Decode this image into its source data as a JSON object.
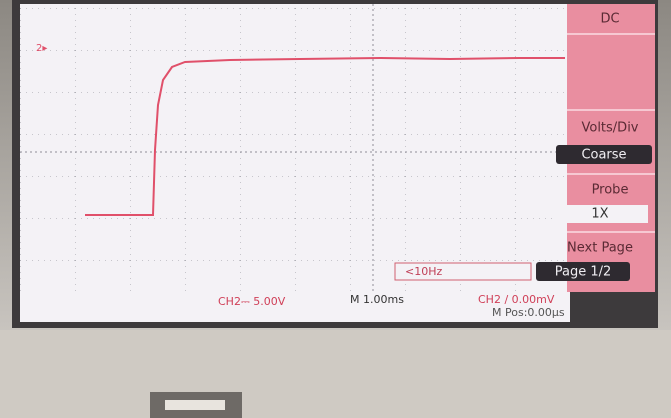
{
  "screen": {
    "channel_marker": "2▸",
    "trigger_frequency": "<10Hz",
    "status": {
      "channel_scale": "CH2⎓ 5.00V",
      "time_base": "M 1.00ms",
      "trigger": "CH2 ∕ 0.00mV",
      "position": "M Pos:0.00μs"
    }
  },
  "menu": {
    "coupling": "DC",
    "volts_div": {
      "label": "Volts/Div",
      "value": "Coarse"
    },
    "probe": {
      "label": "Probe",
      "value": "1X"
    },
    "next_page": {
      "label": "Next Page",
      "value": "Page 1/2"
    }
  }
}
